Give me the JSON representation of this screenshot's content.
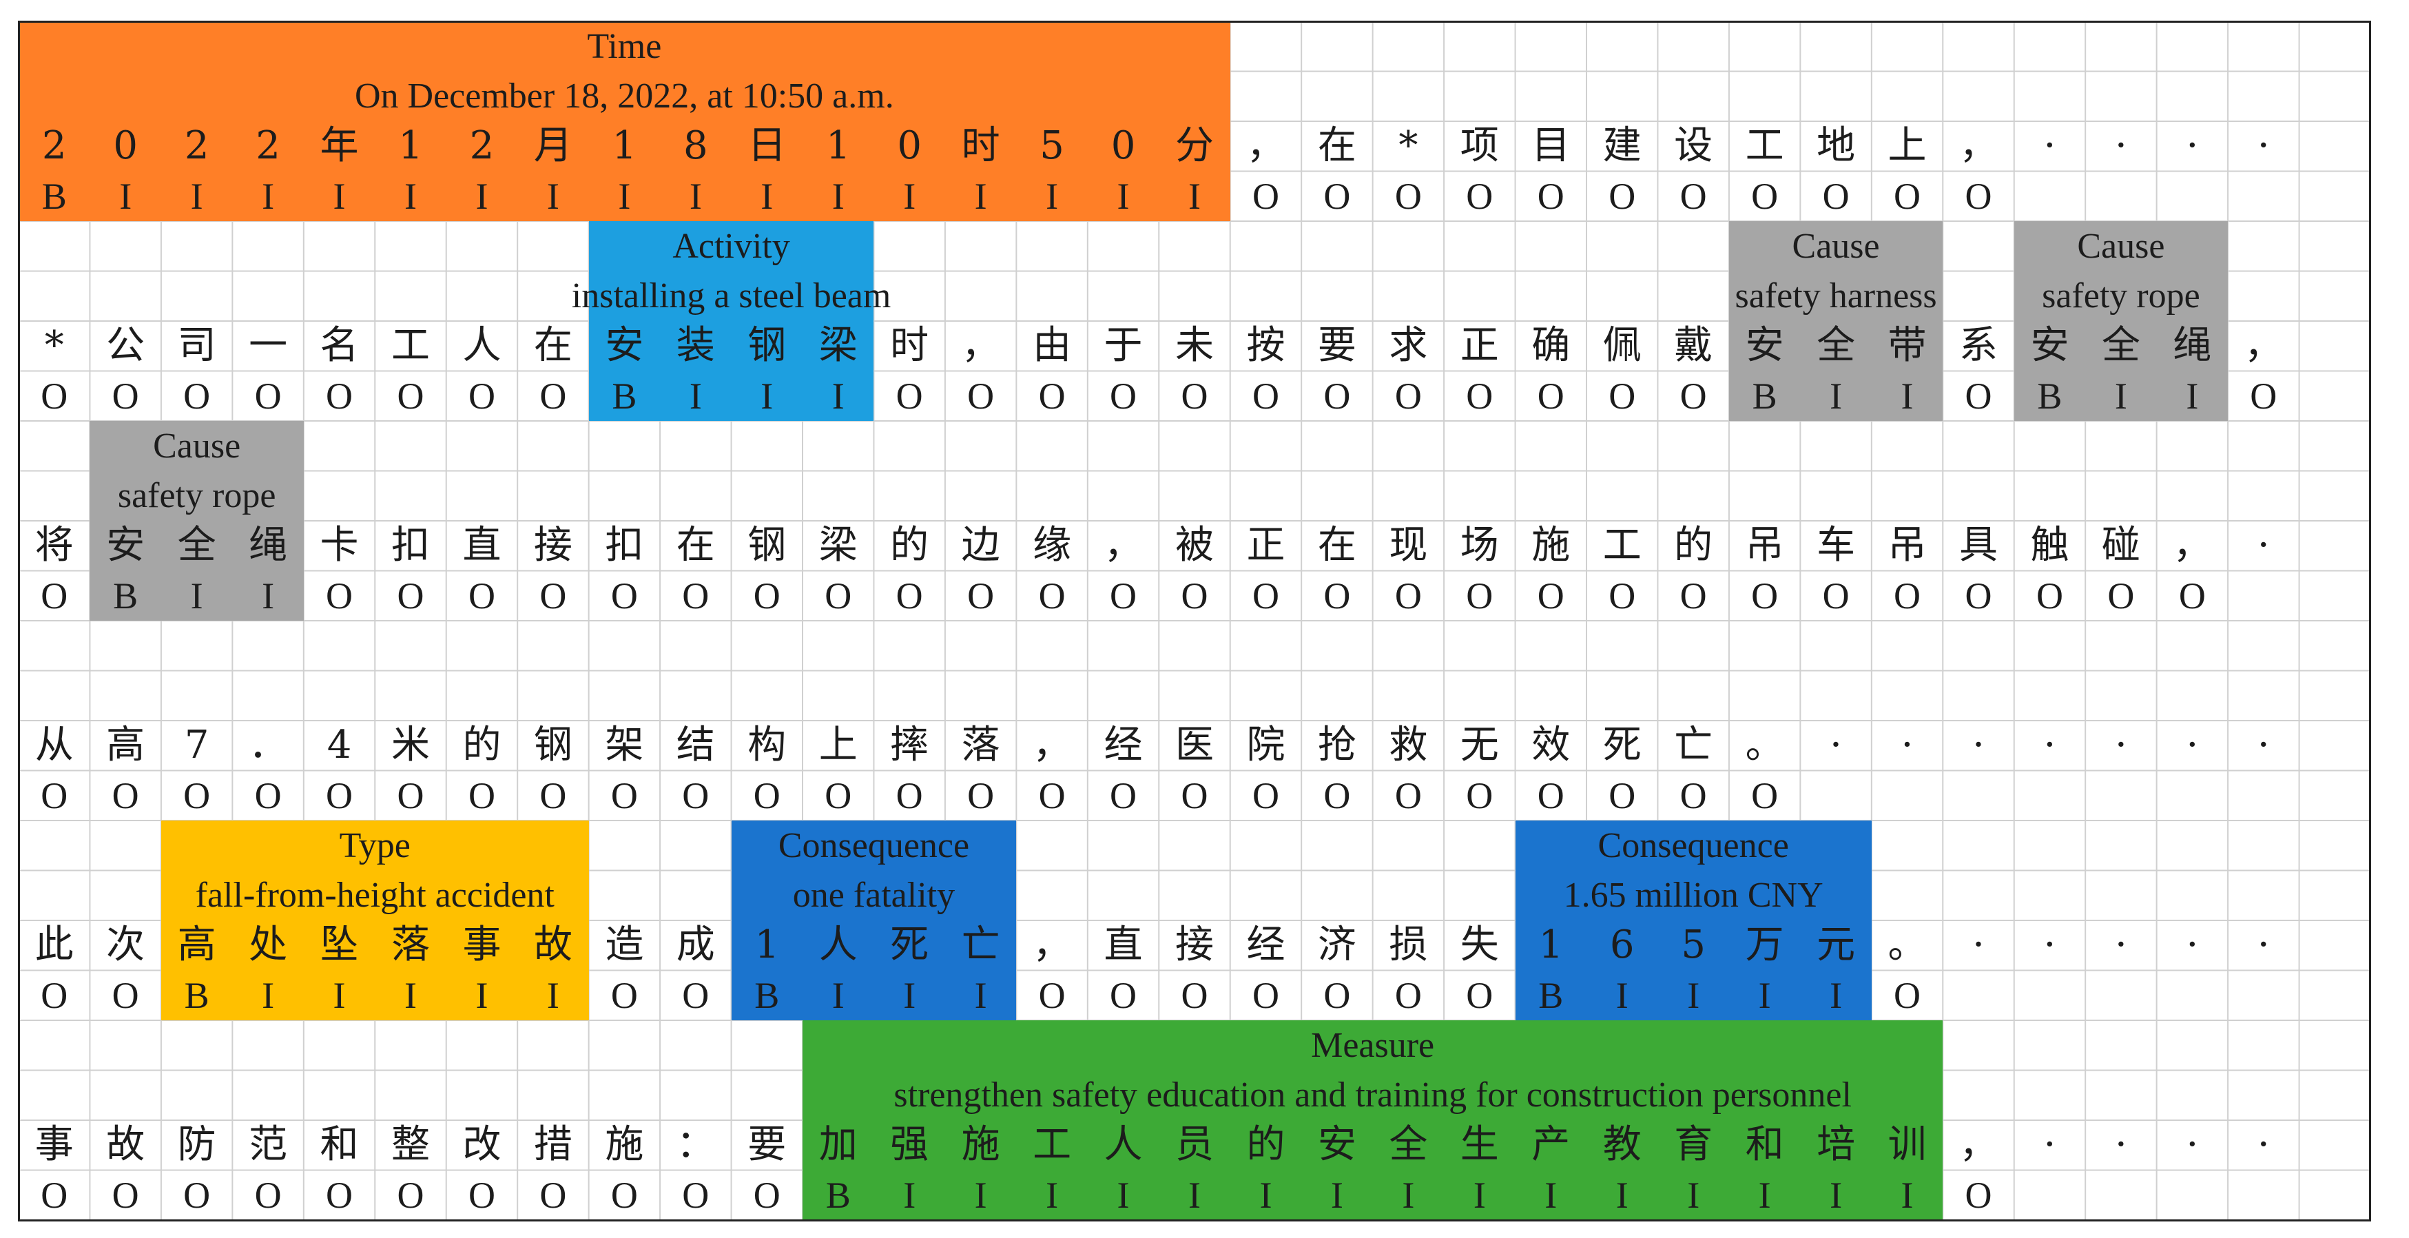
{
  "colors": {
    "Time": "#FF7F27",
    "Activity": "#1D9FE0",
    "Cause": "#A6A6A6",
    "Type": "#FFC000",
    "Consequence": "#1B74CE",
    "Measure": "#3DAA36",
    "grid": "#d0d0d0",
    "frame": "#222222"
  },
  "rows": [
    {
      "chars": [
        "2",
        "0",
        "2",
        "2",
        "年",
        "1",
        "2",
        "月",
        "1",
        "8",
        "日",
        "1",
        "0",
        "时",
        "5",
        "0",
        "分",
        "，",
        "在",
        "*",
        "项",
        "目",
        "建",
        "设",
        "工",
        "地",
        "上",
        "，",
        "·",
        "·",
        "·",
        "·"
      ],
      "tags": [
        "B",
        "I",
        "I",
        "I",
        "I",
        "I",
        "I",
        "I",
        "I",
        "I",
        "I",
        "I",
        "I",
        "I",
        "I",
        "I",
        "I",
        "O",
        "O",
        "O",
        "O",
        "O",
        "O",
        "O",
        "O",
        "O",
        "O",
        "O"
      ],
      "labels": [
        {
          "type": "Time",
          "name": "time-label",
          "start": 0,
          "end": 17,
          "title": "Time",
          "text": "On December 18, 2022, at 10:50 a.m."
        }
      ]
    },
    {
      "chars": [
        "*",
        "公",
        "司",
        "一",
        "名",
        "工",
        "人",
        "在",
        "安",
        "装",
        "钢",
        "梁",
        "时",
        "，",
        "由",
        "于",
        "未",
        "按",
        "要",
        "求",
        "正",
        "确",
        "佩",
        "戴",
        "安",
        "全",
        "带",
        "系",
        "安",
        "全",
        "绳",
        "，"
      ],
      "tags": [
        "O",
        "O",
        "O",
        "O",
        "O",
        "O",
        "O",
        "O",
        "B",
        "I",
        "I",
        "I",
        "O",
        "O",
        "O",
        "O",
        "O",
        "O",
        "O",
        "O",
        "O",
        "O",
        "O",
        "O",
        "B",
        "I",
        "I",
        "O",
        "B",
        "I",
        "I",
        "O"
      ],
      "labels": [
        {
          "type": "Activity",
          "name": "activity-label",
          "start": 8,
          "end": 12,
          "title": "Activity",
          "text": "installing a steel beam"
        },
        {
          "type": "Cause",
          "name": "cause-label-harness",
          "start": 24,
          "end": 27,
          "title": "Cause",
          "text": "safety harness"
        },
        {
          "type": "Cause",
          "name": "cause-label-rope-1",
          "start": 28,
          "end": 31,
          "title": "Cause",
          "text": "safety rope"
        }
      ]
    },
    {
      "chars": [
        "将",
        "安",
        "全",
        "绳",
        "卡",
        "扣",
        "直",
        "接",
        "扣",
        "在",
        "钢",
        "梁",
        "的",
        "边",
        "缘",
        "，",
        "被",
        "正",
        "在",
        "现",
        "场",
        "施",
        "工",
        "的",
        "吊",
        "车",
        "吊",
        "具",
        "触",
        "碰",
        "，",
        "·"
      ],
      "tags": [
        "O",
        "B",
        "I",
        "I",
        "O",
        "O",
        "O",
        "O",
        "O",
        "O",
        "O",
        "O",
        "O",
        "O",
        "O",
        "O",
        "O",
        "O",
        "O",
        "O",
        "O",
        "O",
        "O",
        "O",
        "O",
        "O",
        "O",
        "O",
        "O",
        "O",
        "O"
      ],
      "labels": [
        {
          "type": "Cause",
          "name": "cause-label-rope-2",
          "start": 1,
          "end": 4,
          "title": "Cause",
          "text": "safety rope"
        }
      ]
    },
    {
      "chars": [
        "从",
        "高",
        "7",
        "．",
        "4",
        "米",
        "的",
        "钢",
        "架",
        "结",
        "构",
        "上",
        "摔",
        "落",
        "，",
        "经",
        "医",
        "院",
        "抢",
        "救",
        "无",
        "效",
        "死",
        "亡",
        "。",
        "·",
        "·",
        "·",
        "·",
        "·",
        "·",
        "·"
      ],
      "tags": [
        "O",
        "O",
        "O",
        "O",
        "O",
        "O",
        "O",
        "O",
        "O",
        "O",
        "O",
        "O",
        "O",
        "O",
        "O",
        "O",
        "O",
        "O",
        "O",
        "O",
        "O",
        "O",
        "O",
        "O",
        "O"
      ],
      "labels": []
    },
    {
      "chars": [
        "此",
        "次",
        "高",
        "处",
        "坠",
        "落",
        "事",
        "故",
        "造",
        "成",
        "1",
        "人",
        "死",
        "亡",
        "，",
        "直",
        "接",
        "经",
        "济",
        "损",
        "失",
        "1",
        "6",
        "5",
        "万",
        "元",
        "。",
        "·",
        "·",
        "·",
        "·",
        "·"
      ],
      "tags": [
        "O",
        "O",
        "B",
        "I",
        "I",
        "I",
        "I",
        "I",
        "O",
        "O",
        "B",
        "I",
        "I",
        "I",
        "O",
        "O",
        "O",
        "O",
        "O",
        "O",
        "O",
        "B",
        "I",
        "I",
        "I",
        "I",
        "O"
      ],
      "labels": [
        {
          "type": "Type",
          "name": "type-label",
          "start": 2,
          "end": 8,
          "title": "Type",
          "text": "fall-from-height accident"
        },
        {
          "type": "Consequence",
          "name": "consequence-label-fatality",
          "start": 10,
          "end": 14,
          "title": "Consequence",
          "text": "one fatality"
        },
        {
          "type": "Consequence",
          "name": "consequence-label-loss",
          "start": 21,
          "end": 26,
          "title": "Consequence",
          "text": "1.65 million CNY"
        }
      ]
    },
    {
      "chars": [
        "事",
        "故",
        "防",
        "范",
        "和",
        "整",
        "改",
        "措",
        "施",
        "：",
        "要",
        "加",
        "强",
        "施",
        "工",
        "人",
        "员",
        "的",
        "安",
        "全",
        "生",
        "产",
        "教",
        "育",
        "和",
        "培",
        "训",
        "，",
        "·",
        "·",
        "·",
        "·"
      ],
      "tags": [
        "O",
        "O",
        "O",
        "O",
        "O",
        "O",
        "O",
        "O",
        "O",
        "O",
        "O",
        "B",
        "I",
        "I",
        "I",
        "I",
        "I",
        "I",
        "I",
        "I",
        "I",
        "I",
        "I",
        "I",
        "I",
        "I",
        "I",
        "O"
      ],
      "labels": [
        {
          "type": "Measure",
          "name": "measure-label",
          "start": 11,
          "end": 27,
          "title": "Measure",
          "text": "strengthen safety education and training for construction personnel"
        }
      ]
    }
  ]
}
